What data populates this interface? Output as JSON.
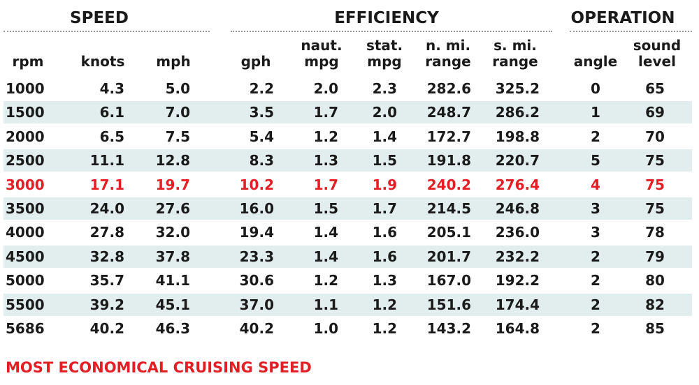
{
  "groups": [
    "SPEED",
    "EFFICIENCY",
    "OPERATION"
  ],
  "columns": [
    [
      "rpm"
    ],
    [
      "knots"
    ],
    [
      "mph"
    ],
    [
      "gph"
    ],
    [
      "naut.",
      "mpg"
    ],
    [
      "stat.",
      "mpg"
    ],
    [
      "n. mi.",
      "range"
    ],
    [
      "s. mi.",
      "range"
    ],
    [
      "angle"
    ],
    [
      "sound",
      "level"
    ]
  ],
  "rows": [
    [
      "1000",
      "4.3",
      "5.0",
      "2.2",
      "2.0",
      "2.3",
      "282.6",
      "325.2",
      "0",
      "65"
    ],
    [
      "1500",
      "6.1",
      "7.0",
      "3.5",
      "1.7",
      "2.0",
      "248.7",
      "286.2",
      "1",
      "69"
    ],
    [
      "2000",
      "6.5",
      "7.5",
      "5.4",
      "1.2",
      "1.4",
      "172.7",
      "198.8",
      "2",
      "70"
    ],
    [
      "2500",
      "11.1",
      "12.8",
      "8.3",
      "1.3",
      "1.5",
      "191.8",
      "220.7",
      "5",
      "75"
    ],
    [
      "3000",
      "17.1",
      "19.7",
      "10.2",
      "1.7",
      "1.9",
      "240.2",
      "276.4",
      "4",
      "75"
    ],
    [
      "3500",
      "24.0",
      "27.6",
      "16.0",
      "1.5",
      "1.7",
      "214.5",
      "246.8",
      "3",
      "75"
    ],
    [
      "4000",
      "27.8",
      "32.0",
      "19.4",
      "1.4",
      "1.6",
      "205.1",
      "236.0",
      "3",
      "78"
    ],
    [
      "4500",
      "32.8",
      "37.8",
      "23.3",
      "1.4",
      "1.6",
      "201.7",
      "232.2",
      "2",
      "79"
    ],
    [
      "5000",
      "35.7",
      "41.1",
      "30.6",
      "1.2",
      "1.3",
      "167.0",
      "192.2",
      "2",
      "80"
    ],
    [
      "5500",
      "39.2",
      "45.1",
      "37.0",
      "1.1",
      "1.2",
      "151.6",
      "174.4",
      "2",
      "82"
    ],
    [
      "5686",
      "40.2",
      "46.3",
      "40.2",
      "1.0",
      "1.2",
      "143.2",
      "164.8",
      "2",
      "85"
    ]
  ],
  "highlight_row": 4,
  "highlight_color": "#e31e24",
  "footnote": "MOST ECONOMICAL CRUISING SPEED"
}
